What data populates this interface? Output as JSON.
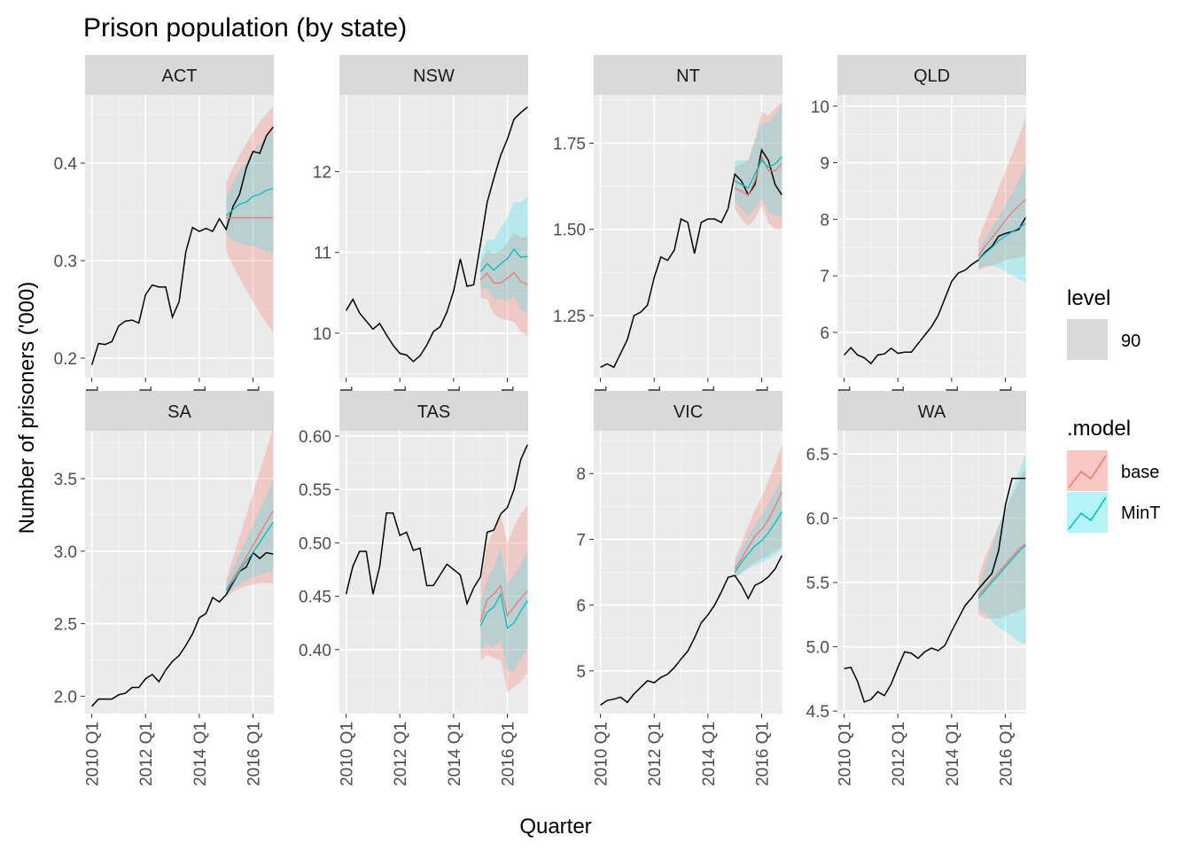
{
  "chart_data": {
    "type": "line",
    "title": "Prison population (by state)",
    "xlabel": "Quarter",
    "ylabel": "Number of prisoners ('000)",
    "x_ticks": [
      "2010 Q1",
      "2012 Q1",
      "2014 Q1",
      "2016 Q1"
    ],
    "x_range": [
      "2009 Q4",
      "2016 Q4"
    ],
    "grid": true,
    "legend_position": "right",
    "legend": {
      "level": {
        "title": "level",
        "items": [
          "90"
        ]
      },
      "model": {
        "title": ".model",
        "items": [
          "base",
          "MinT"
        ]
      }
    },
    "colors": {
      "actual": "#000000",
      "base": "#F8766D",
      "MinT": "#00BFC4",
      "base_band": "#F8766D",
      "MinT_band": "#00E5F0",
      "panel_bg": "#EBEBEB",
      "strip_bg": "#D9D9D9"
    },
    "history_quarters": [
      "2010 Q1",
      "2010 Q2",
      "2010 Q3",
      "2010 Q4",
      "2011 Q1",
      "2011 Q2",
      "2011 Q3",
      "2011 Q4",
      "2012 Q1",
      "2012 Q2",
      "2012 Q3",
      "2012 Q4",
      "2013 Q1",
      "2013 Q2",
      "2013 Q3",
      "2013 Q4",
      "2014 Q1",
      "2014 Q2",
      "2014 Q3",
      "2014 Q4",
      "2015 Q1",
      "2015 Q2",
      "2015 Q3",
      "2015 Q4",
      "2016 Q1",
      "2016 Q2",
      "2016 Q3",
      "2016 Q4"
    ],
    "forecast_quarters": [
      "2015 Q1",
      "2015 Q2",
      "2015 Q3",
      "2015 Q4",
      "2016 Q1",
      "2016 Q2",
      "2016 Q3",
      "2016 Q4"
    ],
    "panels": [
      {
        "state": "ACT",
        "ylim": [
          0.18,
          0.47
        ],
        "y_ticks": [
          0.2,
          0.3,
          0.4
        ],
        "y_tick_labels": [
          "0.2",
          "0.3",
          "0.4"
        ],
        "actual": [
          0.193,
          0.215,
          0.214,
          0.217,
          0.233,
          0.238,
          0.239,
          0.236,
          0.265,
          0.275,
          0.273,
          0.273,
          0.242,
          0.258,
          0.309,
          0.334,
          0.33,
          0.333,
          0.33,
          0.343,
          0.332,
          0.355,
          0.368,
          0.395,
          0.412,
          0.41,
          0.428,
          0.437
        ],
        "base_mean": [
          0.344,
          0.344,
          0.344,
          0.344,
          0.344,
          0.344,
          0.344,
          0.344
        ],
        "base_lo": [
          0.31,
          0.295,
          0.282,
          0.27,
          0.258,
          0.246,
          0.236,
          0.226
        ],
        "base_hi": [
          0.38,
          0.395,
          0.408,
          0.42,
          0.432,
          0.442,
          0.451,
          0.458
        ],
        "mint_mean": [
          0.346,
          0.352,
          0.358,
          0.36,
          0.366,
          0.368,
          0.372,
          0.374
        ],
        "mint_lo": [
          0.328,
          0.32,
          0.318,
          0.316,
          0.315,
          0.312,
          0.31,
          0.308
        ],
        "mint_hi": [
          0.364,
          0.38,
          0.392,
          0.402,
          0.412,
          0.42,
          0.426,
          0.433
        ]
      },
      {
        "state": "NSW",
        "ylim": [
          9.45,
          12.95
        ],
        "y_ticks": [
          10,
          11,
          12
        ],
        "y_tick_labels": [
          "10",
          "11",
          "12"
        ],
        "actual": [
          10.28,
          10.42,
          10.25,
          10.15,
          10.05,
          10.12,
          9.98,
          9.85,
          9.75,
          9.73,
          9.65,
          9.72,
          9.85,
          10.02,
          10.08,
          10.26,
          10.52,
          10.92,
          10.58,
          10.6,
          11.1,
          11.62,
          11.92,
          12.2,
          12.4,
          12.65,
          12.73,
          12.8
        ],
        "base_mean": [
          10.66,
          10.74,
          10.62,
          10.62,
          10.68,
          10.75,
          10.64,
          10.6
        ],
        "base_lo": [
          10.44,
          10.42,
          10.24,
          10.18,
          10.16,
          10.14,
          10.02,
          9.96
        ],
        "base_hi": [
          10.86,
          11.04,
          10.98,
          11.02,
          11.12,
          11.25,
          11.18,
          11.2
        ],
        "mint_mean": [
          10.76,
          10.86,
          10.78,
          10.86,
          10.92,
          11.04,
          10.94,
          10.95
        ],
        "mint_lo": [
          10.56,
          10.56,
          10.42,
          10.42,
          10.4,
          10.46,
          10.3,
          10.25
        ],
        "mint_hi": [
          10.96,
          11.16,
          11.16,
          11.3,
          11.44,
          11.62,
          11.62,
          11.7
        ]
      },
      {
        "state": "NT",
        "ylim": [
          1.07,
          1.89
        ],
        "y_ticks": [
          1.25,
          1.5,
          1.75
        ],
        "y_tick_labels": [
          "1.25",
          "1.50",
          "1.75"
        ],
        "actual": [
          1.1,
          1.11,
          1.1,
          1.14,
          1.18,
          1.25,
          1.26,
          1.28,
          1.36,
          1.42,
          1.41,
          1.44,
          1.53,
          1.52,
          1.43,
          1.52,
          1.53,
          1.53,
          1.52,
          1.56,
          1.66,
          1.64,
          1.6,
          1.63,
          1.73,
          1.7,
          1.63,
          1.6
        ],
        "base_mean": [
          1.62,
          1.61,
          1.6,
          1.64,
          1.71,
          1.67,
          1.67,
          1.69
        ],
        "base_lo": [
          1.56,
          1.53,
          1.51,
          1.53,
          1.57,
          1.52,
          1.5,
          1.5
        ],
        "base_hi": [
          1.68,
          1.69,
          1.7,
          1.76,
          1.84,
          1.83,
          1.85,
          1.87
        ],
        "mint_mean": [
          1.64,
          1.63,
          1.62,
          1.66,
          1.7,
          1.68,
          1.69,
          1.71
        ],
        "mint_lo": [
          1.58,
          1.56,
          1.54,
          1.56,
          1.59,
          1.55,
          1.54,
          1.54
        ],
        "mint_hi": [
          1.7,
          1.7,
          1.7,
          1.76,
          1.81,
          1.81,
          1.83,
          1.86
        ]
      },
      {
        "state": "QLD",
        "ylim": [
          5.2,
          10.2
        ],
        "y_ticks": [
          6,
          7,
          8,
          9,
          10
        ],
        "y_tick_labels": [
          "6",
          "7",
          "8",
          "9",
          "10"
        ],
        "actual": [
          5.6,
          5.73,
          5.6,
          5.55,
          5.45,
          5.6,
          5.62,
          5.72,
          5.63,
          5.65,
          5.65,
          5.8,
          5.95,
          6.1,
          6.3,
          6.6,
          6.9,
          7.05,
          7.1,
          7.2,
          7.28,
          7.42,
          7.52,
          7.7,
          7.75,
          7.78,
          7.82,
          8.03
        ],
        "base_mean": [
          7.35,
          7.53,
          7.67,
          7.82,
          7.98,
          8.12,
          8.24,
          8.35
        ],
        "base_lo": [
          7.1,
          7.15,
          7.18,
          7.22,
          7.28,
          7.3,
          7.32,
          7.35
        ],
        "base_hi": [
          7.65,
          7.95,
          8.25,
          8.55,
          8.85,
          9.15,
          9.45,
          9.8
        ],
        "mint_mean": [
          7.28,
          7.4,
          7.5,
          7.62,
          7.7,
          7.78,
          7.85,
          7.92
        ],
        "mint_lo": [
          7.12,
          7.18,
          7.18,
          7.14,
          7.08,
          7.0,
          6.94,
          6.88
        ],
        "mint_hi": [
          7.45,
          7.65,
          7.85,
          8.05,
          8.25,
          8.45,
          8.7,
          8.95
        ]
      },
      {
        "state": "SA",
        "ylim": [
          1.88,
          3.83
        ],
        "y_ticks": [
          2.0,
          2.5,
          3.0,
          3.5
        ],
        "y_tick_labels": [
          "2.0",
          "2.5",
          "3.0",
          "3.5"
        ],
        "actual": [
          1.93,
          1.98,
          1.98,
          1.98,
          2.01,
          2.02,
          2.06,
          2.06,
          2.12,
          2.15,
          2.1,
          2.18,
          2.24,
          2.28,
          2.35,
          2.43,
          2.54,
          2.57,
          2.68,
          2.65,
          2.7,
          2.78,
          2.86,
          2.89,
          2.99,
          2.95,
          2.99,
          2.98
        ],
        "base_mean": [
          2.73,
          2.81,
          2.88,
          2.96,
          3.04,
          3.12,
          3.2,
          3.28
        ],
        "base_lo": [
          2.68,
          2.72,
          2.74,
          2.76,
          2.77,
          2.78,
          2.78,
          2.78
        ],
        "base_hi": [
          2.8,
          2.95,
          3.1,
          3.25,
          3.4,
          3.55,
          3.7,
          3.85
        ],
        "mint_mean": [
          2.73,
          2.79,
          2.86,
          2.93,
          2.99,
          3.06,
          3.13,
          3.2
        ],
        "mint_lo": [
          2.7,
          2.74,
          2.77,
          2.8,
          2.82,
          2.84,
          2.85,
          2.86
        ],
        "mint_hi": [
          2.78,
          2.88,
          2.98,
          3.08,
          3.18,
          3.28,
          3.38,
          3.5
        ]
      },
      {
        "state": "TAS",
        "ylim": [
          0.34,
          0.605
        ],
        "y_ticks": [
          0.4,
          0.45,
          0.5,
          0.55,
          0.6
        ],
        "y_tick_labels": [
          "0.40",
          "0.45",
          "0.50",
          "0.55",
          "0.60"
        ],
        "actual": [
          0.452,
          0.478,
          0.492,
          0.492,
          0.452,
          0.478,
          0.528,
          0.528,
          0.507,
          0.51,
          0.493,
          0.495,
          0.46,
          0.46,
          0.47,
          0.48,
          0.475,
          0.47,
          0.443,
          0.458,
          0.468,
          0.51,
          0.512,
          0.527,
          0.533,
          0.55,
          0.578,
          0.592
        ],
        "base_mean": [
          0.426,
          0.447,
          0.452,
          0.46,
          0.432,
          0.44,
          0.448,
          0.455
        ],
        "base_lo": [
          0.39,
          0.395,
          0.392,
          0.39,
          0.36,
          0.365,
          0.37,
          0.378
        ],
        "base_hi": [
          0.462,
          0.498,
          0.512,
          0.528,
          0.5,
          0.515,
          0.527,
          0.535
        ],
        "mint_mean": [
          0.422,
          0.435,
          0.44,
          0.452,
          0.42,
          0.425,
          0.436,
          0.446
        ],
        "mint_lo": [
          0.4,
          0.405,
          0.402,
          0.408,
          0.38,
          0.38,
          0.392,
          0.4
        ],
        "mint_hi": [
          0.445,
          0.465,
          0.478,
          0.495,
          0.462,
          0.47,
          0.48,
          0.492
        ]
      },
      {
        "state": "VIC",
        "ylim": [
          4.35,
          8.65
        ],
        "y_ticks": [
          5,
          6,
          7,
          8
        ],
        "y_tick_labels": [
          "5",
          "6",
          "7",
          "8"
        ],
        "actual": [
          4.48,
          4.55,
          4.57,
          4.6,
          4.52,
          4.65,
          4.75,
          4.85,
          4.82,
          4.9,
          4.95,
          5.05,
          5.18,
          5.3,
          5.5,
          5.73,
          5.85,
          6.0,
          6.2,
          6.42,
          6.45,
          6.3,
          6.1,
          6.3,
          6.35,
          6.43,
          6.55,
          6.75
        ],
        "base_mean": [
          6.55,
          6.7,
          6.88,
          7.05,
          7.15,
          7.3,
          7.5,
          7.72
        ],
        "base_lo": [
          6.42,
          6.5,
          6.58,
          6.65,
          6.7,
          6.76,
          6.82,
          6.9
        ],
        "base_hi": [
          6.7,
          6.95,
          7.2,
          7.45,
          7.65,
          7.88,
          8.15,
          8.42
        ],
        "mint_mean": [
          6.5,
          6.65,
          6.78,
          6.9,
          6.98,
          7.1,
          7.25,
          7.42
        ],
        "mint_lo": [
          6.4,
          6.48,
          6.55,
          6.6,
          6.64,
          6.7,
          6.76,
          6.84
        ],
        "mint_hi": [
          6.62,
          6.85,
          7.05,
          7.22,
          7.38,
          7.55,
          7.72,
          7.92
        ]
      },
      {
        "state": "WA",
        "ylim": [
          4.48,
          6.68
        ],
        "y_ticks": [
          4.5,
          5.0,
          5.5,
          6.0,
          6.5
        ],
        "y_tick_labels": [
          "4.5",
          "5.0",
          "5.5",
          "6.0",
          "6.5"
        ],
        "actual": [
          4.83,
          4.84,
          4.73,
          4.57,
          4.59,
          4.65,
          4.62,
          4.71,
          4.84,
          4.96,
          4.95,
          4.91,
          4.96,
          4.99,
          4.97,
          5.01,
          5.12,
          5.22,
          5.32,
          5.38,
          5.45,
          5.51,
          5.57,
          5.75,
          6.1,
          6.31,
          6.31,
          6.31
        ],
        "base_mean": [
          5.4,
          5.46,
          5.52,
          5.58,
          5.64,
          5.7,
          5.76,
          5.8
        ],
        "base_lo": [
          5.25,
          5.22,
          5.22,
          5.22,
          5.24,
          5.26,
          5.28,
          5.3
        ],
        "base_hi": [
          5.55,
          5.7,
          5.82,
          5.94,
          6.06,
          6.18,
          6.28,
          6.4
        ],
        "mint_mean": [
          5.38,
          5.44,
          5.5,
          5.56,
          5.62,
          5.68,
          5.74,
          5.79
        ],
        "mint_lo": [
          5.3,
          5.26,
          5.2,
          5.15,
          5.12,
          5.08,
          5.04,
          5.02
        ],
        "mint_hi": [
          5.46,
          5.62,
          5.78,
          5.94,
          6.08,
          6.22,
          6.36,
          6.5
        ]
      }
    ]
  }
}
